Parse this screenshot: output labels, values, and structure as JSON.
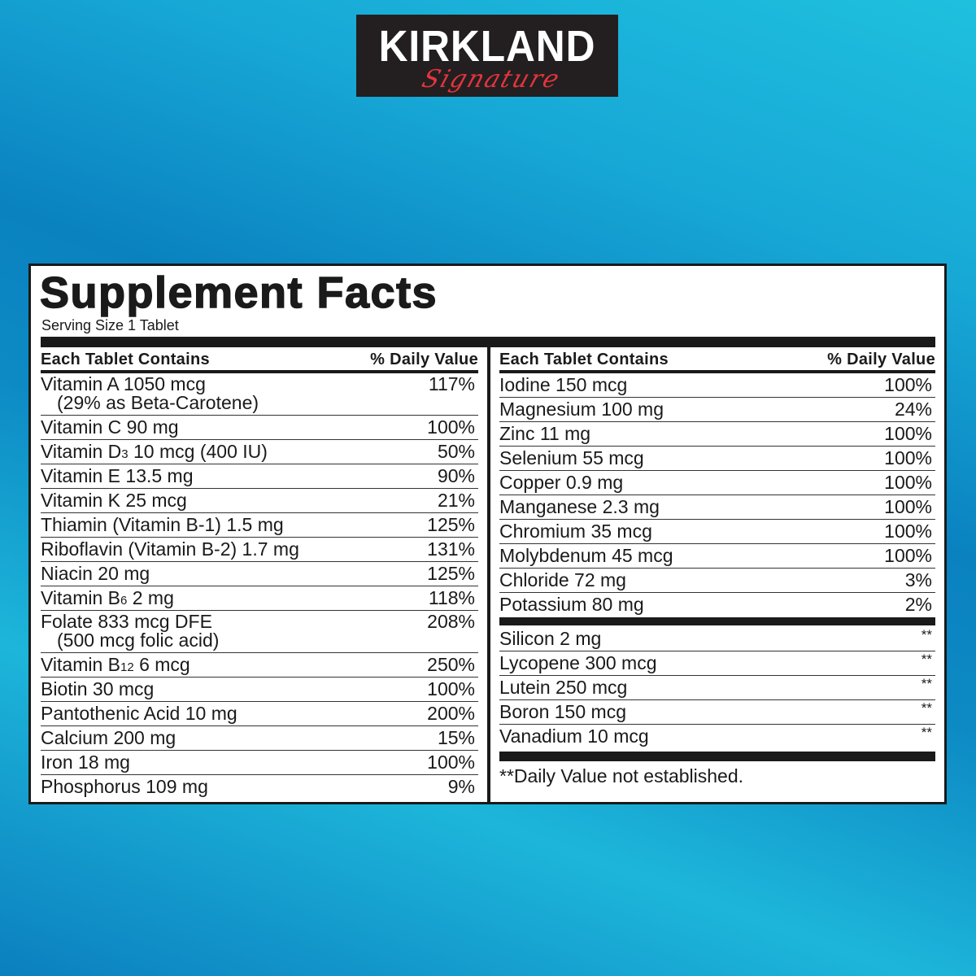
{
  "logo": {
    "brand": "KIRKLAND",
    "sub": "Signature"
  },
  "label": {
    "title": "Supplement Facts",
    "serving_size": "Serving Size 1 Tablet",
    "col_header_name": "Each Tablet Contains",
    "col_header_dv": "% Daily Value",
    "footnote": "**Daily Value not established."
  },
  "left_rows": [
    {
      "name": "Vitamin A 1050 mcg",
      "line2": "(29% as Beta-Carotene)",
      "dv": "117%"
    },
    {
      "name": "Vitamin C 90 mg",
      "dv": "100%"
    },
    {
      "name": "Vitamin D",
      "sub": "3",
      "rest": " 10 mcg (400 IU)",
      "dv": "50%"
    },
    {
      "name": "Vitamin E 13.5 mg",
      "dv": "90%"
    },
    {
      "name": "Vitamin K 25 mcg",
      "dv": "21%"
    },
    {
      "name": "Thiamin (Vitamin B-1) 1.5 mg",
      "dv": "125%"
    },
    {
      "name": "Riboflavin (Vitamin B-2) 1.7 mg",
      "dv": "131%"
    },
    {
      "name": "Niacin 20 mg",
      "dv": "125%"
    },
    {
      "name": "Vitamin B",
      "sub": "6",
      "rest": " 2 mg",
      "dv": "118%"
    },
    {
      "name": "Folate 833 mcg DFE",
      "line2": "(500 mcg folic acid)",
      "dv": "208%"
    },
    {
      "name": "Vitamin B",
      "sub": "12",
      "rest": " 6 mcg",
      "dv": "250%"
    },
    {
      "name": "Biotin 30 mcg",
      "dv": "100%"
    },
    {
      "name": "Pantothenic Acid 10 mg",
      "dv": "200%"
    },
    {
      "name": "Calcium 200 mg",
      "dv": "15%"
    },
    {
      "name": "Iron 18 mg",
      "dv": "100%"
    },
    {
      "name": "Phosphorus 109 mg",
      "dv": "9%"
    }
  ],
  "right_rows": [
    {
      "name": "Iodine 150 mcg",
      "dv": "100%"
    },
    {
      "name": "Magnesium 100 mg",
      "dv": "24%"
    },
    {
      "name": "Zinc 11 mg",
      "dv": "100%"
    },
    {
      "name": "Selenium 55 mcg",
      "dv": "100%"
    },
    {
      "name": "Copper 0.9 mg",
      "dv": "100%"
    },
    {
      "name": "Manganese 2.3 mg",
      "dv": "100%"
    },
    {
      "name": "Chromium 35 mcg",
      "dv": "100%"
    },
    {
      "name": "Molybdenum 45 mcg",
      "dv": "100%"
    },
    {
      "name": "Chloride 72 mg",
      "dv": "3%"
    },
    {
      "name": "Potassium 80 mg",
      "dv": "2%"
    }
  ],
  "other_rows": [
    {
      "name": "Silicon 2 mg",
      "dv": "**"
    },
    {
      "name": "Lycopene 300 mcg",
      "dv": "**"
    },
    {
      "name": "Lutein 250 mcg",
      "dv": "**"
    },
    {
      "name": "Boron 150 mcg",
      "dv": "**"
    },
    {
      "name": "Vanadium 10 mcg",
      "dv": "**"
    }
  ]
}
